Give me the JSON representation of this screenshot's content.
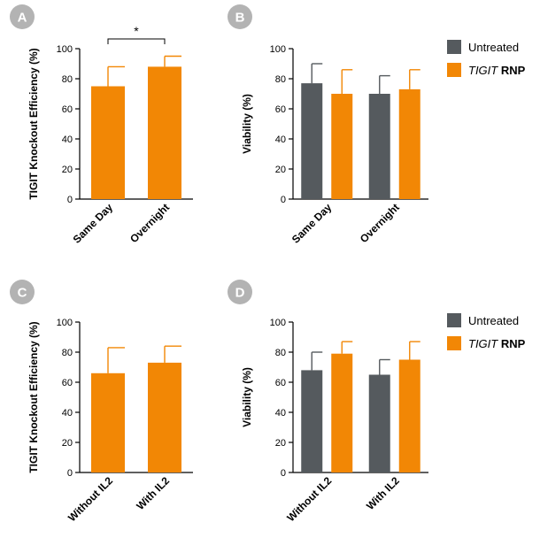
{
  "panel_badge_color": "#b3b3b3",
  "colors": {
    "untreated": "#555a5e",
    "tigit_rnp": "#f28705"
  },
  "legend": [
    {
      "key": "untreated",
      "label_plain": "Untreated",
      "label_italic": "",
      "label_bold": ""
    },
    {
      "key": "tigit_rnp",
      "label_plain": "",
      "label_italic": "TIGIT",
      "label_bold": " RNP"
    }
  ],
  "chart_data": [
    {
      "panel": "A",
      "type": "bar",
      "ylabel": "TIGIT Knockout Efficiency (%)",
      "ylim": [
        0,
        100
      ],
      "yticks": [
        "0",
        "20",
        "40",
        "60",
        "80",
        "100"
      ],
      "categories": [
        "Same Day",
        "Overnight"
      ],
      "series": [
        {
          "key": "tigit_rnp",
          "values": [
            75,
            88
          ],
          "errors": [
            13,
            7
          ]
        }
      ],
      "significance": {
        "between": [
          0,
          1
        ],
        "label": "*"
      }
    },
    {
      "panel": "B",
      "type": "bar",
      "ylabel": "Viability (%)",
      "ylim": [
        0,
        100
      ],
      "yticks": [
        "0",
        "20",
        "40",
        "60",
        "80",
        "100"
      ],
      "categories": [
        "Same Day",
        "Overnight"
      ],
      "series": [
        {
          "key": "untreated",
          "name": "Untreated",
          "values": [
            77,
            70
          ],
          "errors": [
            13,
            12
          ]
        },
        {
          "key": "tigit_rnp",
          "name": "TIGIT RNP",
          "values": [
            70,
            73
          ],
          "errors": [
            16,
            13
          ]
        }
      ],
      "legend_position": "top-right"
    },
    {
      "panel": "C",
      "type": "bar",
      "ylabel": "TIGIT Knockout Efficiency (%)",
      "ylim": [
        0,
        100
      ],
      "yticks": [
        "0",
        "20",
        "40",
        "60",
        "80",
        "100"
      ],
      "categories": [
        "Without IL2",
        "With IL2"
      ],
      "series": [
        {
          "key": "tigit_rnp",
          "values": [
            66,
            73
          ],
          "errors": [
            17,
            11
          ]
        }
      ]
    },
    {
      "panel": "D",
      "type": "bar",
      "ylabel": "Viability (%)",
      "ylim": [
        0,
        100
      ],
      "yticks": [
        "0",
        "20",
        "40",
        "60",
        "80",
        "100"
      ],
      "categories": [
        "Without IL2",
        "With IL2"
      ],
      "series": [
        {
          "key": "untreated",
          "name": "Untreated",
          "values": [
            68,
            65
          ],
          "errors": [
            12,
            10
          ]
        },
        {
          "key": "tigit_rnp",
          "name": "TIGIT RNP",
          "values": [
            79,
            75
          ],
          "errors": [
            8,
            12
          ]
        }
      ],
      "legend_position": "top-right"
    }
  ]
}
